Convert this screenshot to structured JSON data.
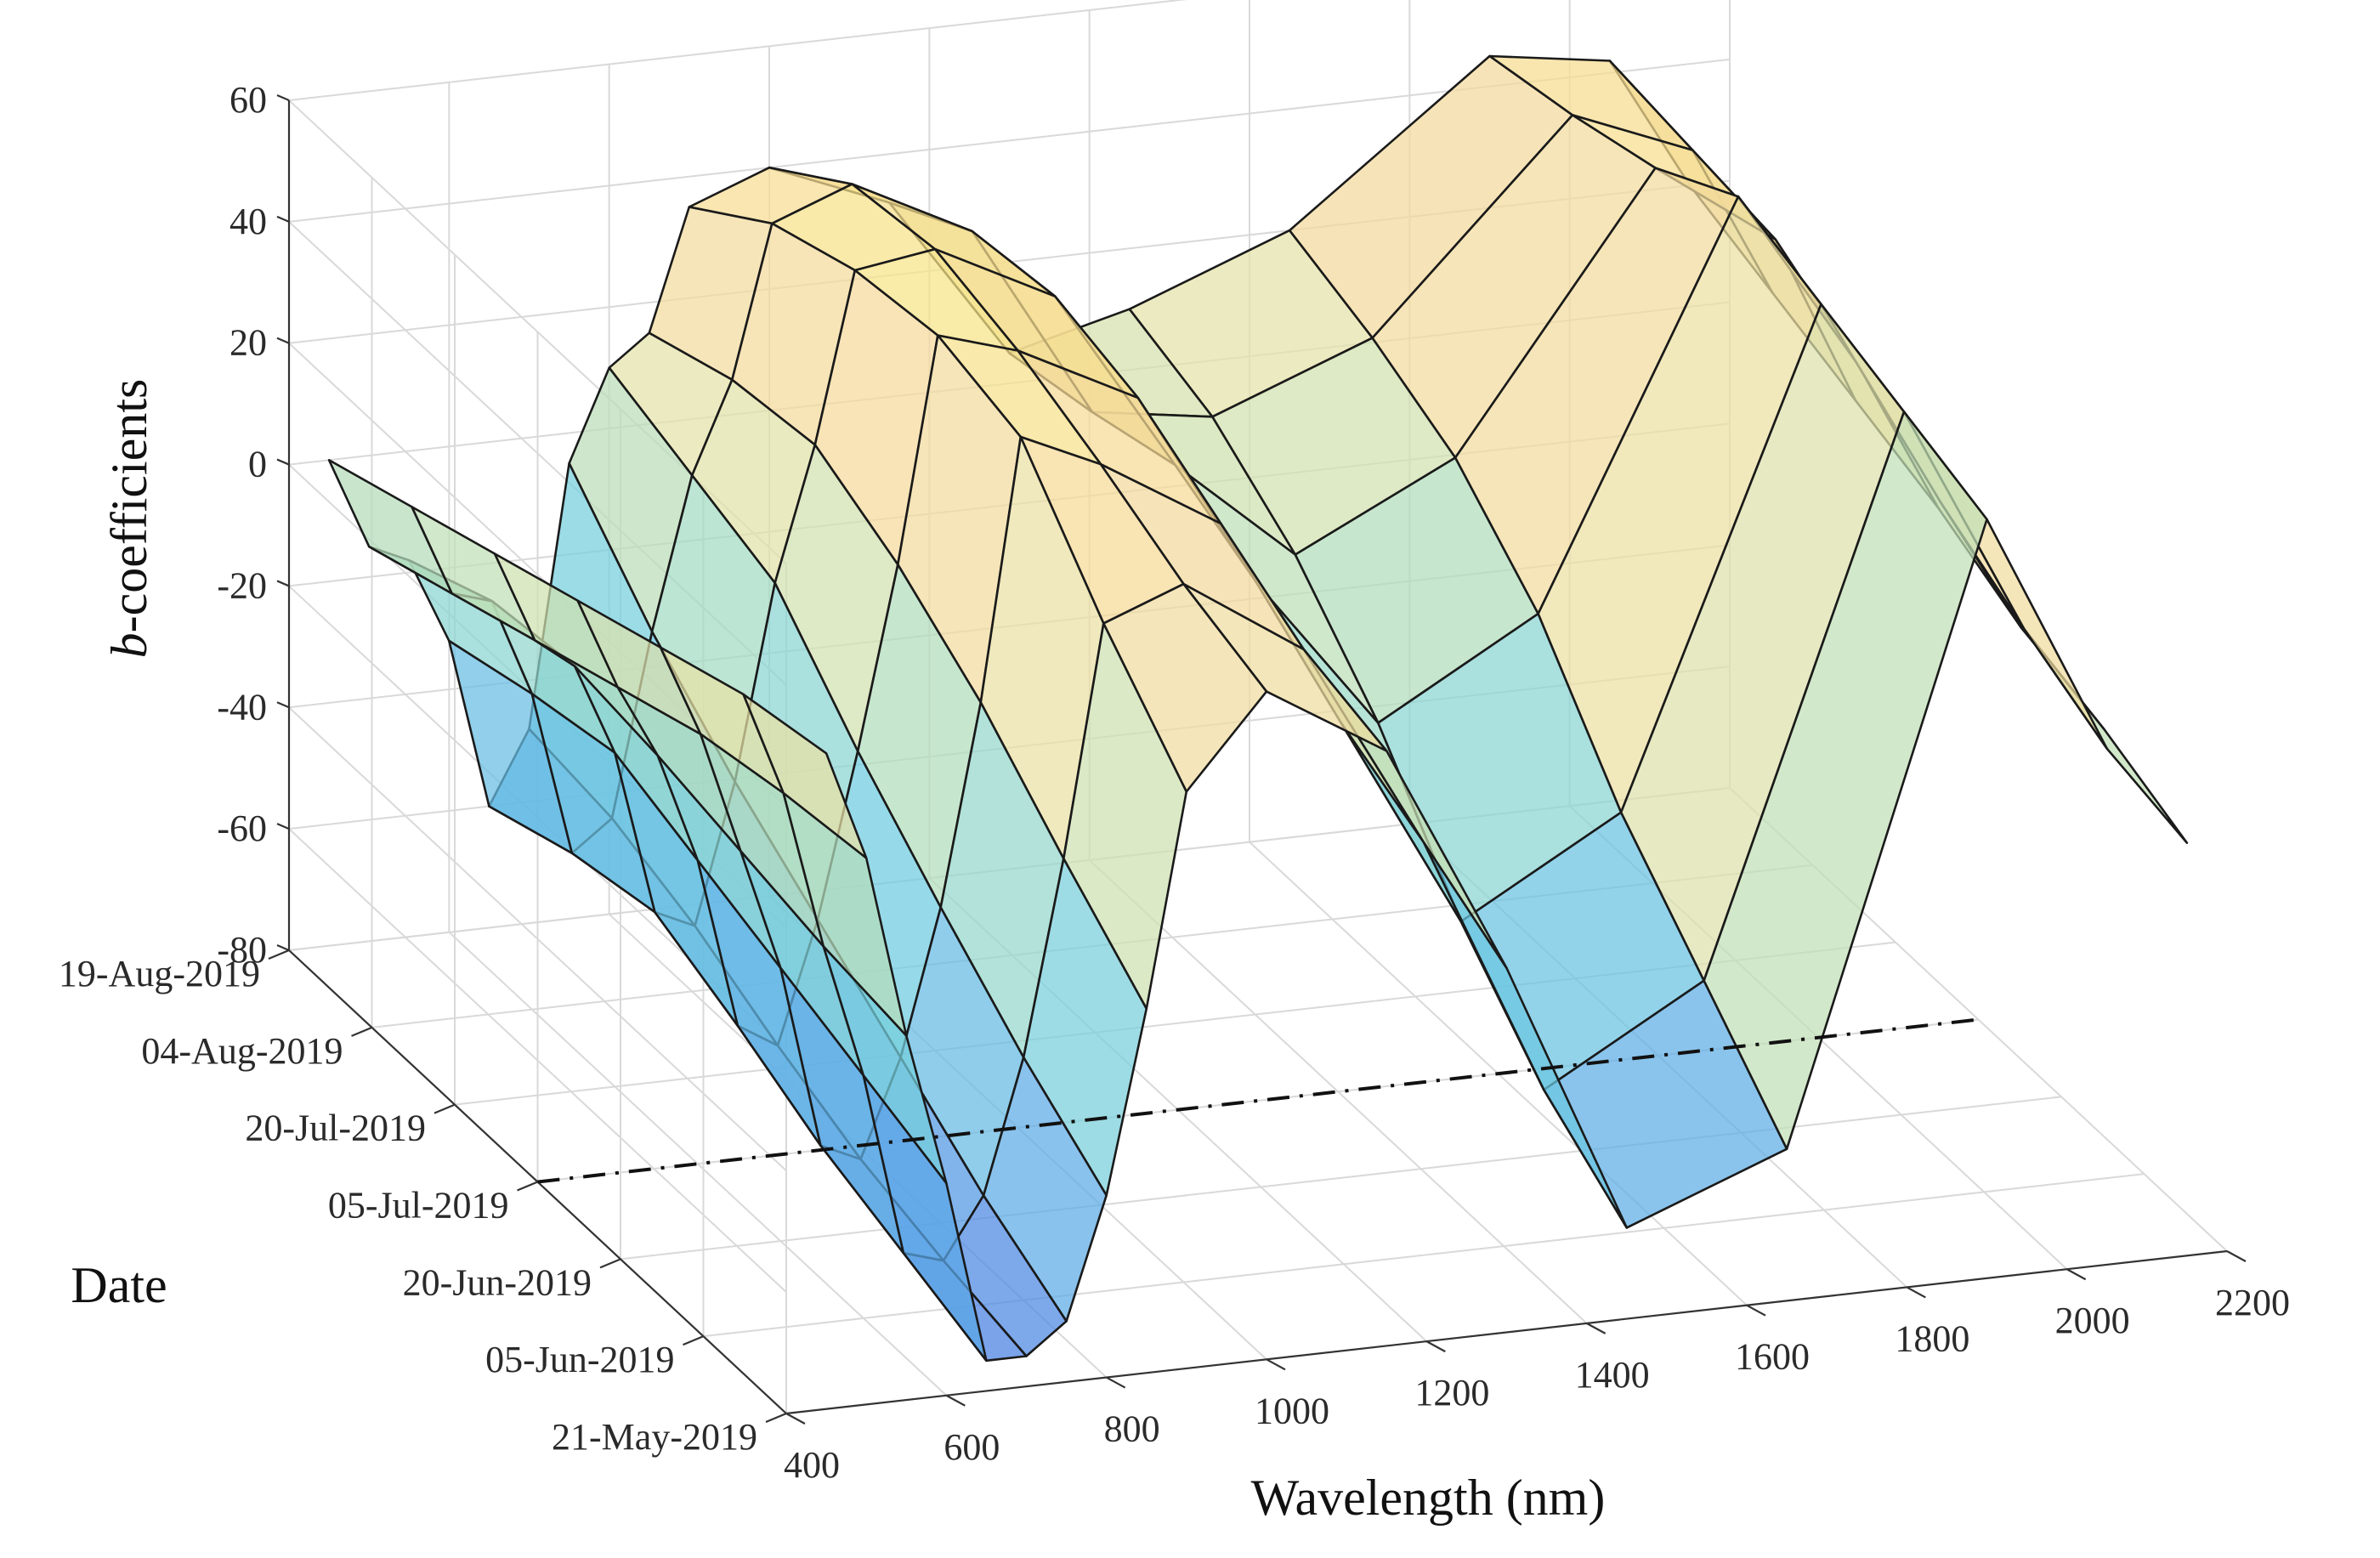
{
  "chart_data": {
    "type": "surface3d",
    "title": "",
    "xlabel": "Wavelength (nm)",
    "ylabel": "Date",
    "zlabel_prefix": "b",
    "zlabel_suffix": "-coefficients",
    "x_ticks": [
      400,
      600,
      800,
      1000,
      1200,
      1400,
      1600,
      1800,
      2000,
      2200
    ],
    "y_ticks": [
      "21-May-2019",
      "05-Jun-2019",
      "20-Jun-2019",
      "05-Jul-2019",
      "20-Jul-2019",
      "04-Aug-2019",
      "19-Aug-2019"
    ],
    "z_ticks": [
      -80,
      -60,
      -40,
      -20,
      0,
      20,
      40,
      60
    ],
    "xlim": [
      400,
      2200
    ],
    "ylim": [
      "21-May-2019",
      "19-Aug-2019"
    ],
    "zlim": [
      -80,
      60
    ],
    "grid": true,
    "reference_line_date": "05-Jul-2019",
    "colormap": [
      "#3f6fe0",
      "#5aa8e6",
      "#6fcde0",
      "#a6dcc0",
      "#e6e2a6",
      "#f6d89a",
      "#f6ea7a"
    ],
    "wavelengths": [
      450,
      500,
      550,
      600,
      650,
      700,
      750,
      800,
      850,
      900,
      1000,
      1150,
      1300,
      1450,
      1650,
      1900,
      2050,
      2150
    ],
    "dates": [
      "21-May-2019",
      "05-Jun-2019",
      "20-Jun-2019",
      "05-Jul-2019",
      "20-Jul-2019",
      "04-Aug-2019",
      "19-Aug-2019"
    ],
    "b_coefficients": [
      [
        28,
        10,
        -20,
        -45,
        -75,
        -75,
        -70,
        -50,
        -20,
        15,
        30,
        18,
        -20,
        -65,
        -55,
        45,
        5,
        -12
      ],
      [
        25,
        8,
        -18,
        -40,
        -70,
        -72,
        -62,
        -40,
        -8,
        30,
        35,
        22,
        -12,
        -55,
        -40,
        50,
        12,
        -6
      ],
      [
        20,
        5,
        -15,
        -35,
        -65,
        -68,
        -52,
        -28,
        5,
        48,
        42,
        30,
        -5,
        -40,
        -25,
        55,
        20,
        -2
      ],
      [
        15,
        0,
        -12,
        -30,
        -58,
        -62,
        -42,
        -15,
        15,
        52,
        48,
        38,
        5,
        -20,
        -5,
        60,
        30,
        5
      ],
      [
        10,
        -5,
        -10,
        -25,
        -52,
        -55,
        -32,
        0,
        22,
        50,
        52,
        42,
        12,
        -5,
        8,
        52,
        38,
        10
      ],
      [
        5,
        -10,
        -12,
        -28,
        -55,
        -50,
        -20,
        5,
        20,
        45,
        50,
        40,
        8,
        5,
        15,
        48,
        40,
        15
      ],
      [
        0,
        -15,
        -18,
        -32,
        -60,
        -48,
        -5,
        10,
        15,
        35,
        40,
        32,
        5,
        10,
        20,
        45,
        42,
        20
      ]
    ]
  }
}
